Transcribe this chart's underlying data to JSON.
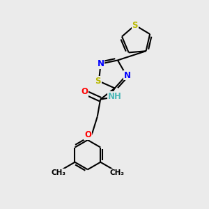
{
  "background_color": "#ebebeb",
  "bond_color": "#000000",
  "S_color": "#b8b800",
  "N_color": "#0000ff",
  "O_color": "#ff0000",
  "NH_color": "#4db8b8",
  "line_width": 1.5,
  "figsize": [
    3.0,
    3.0
  ],
  "dpi": 100,
  "xlim": [
    0,
    10
  ],
  "ylim": [
    0,
    10
  ]
}
